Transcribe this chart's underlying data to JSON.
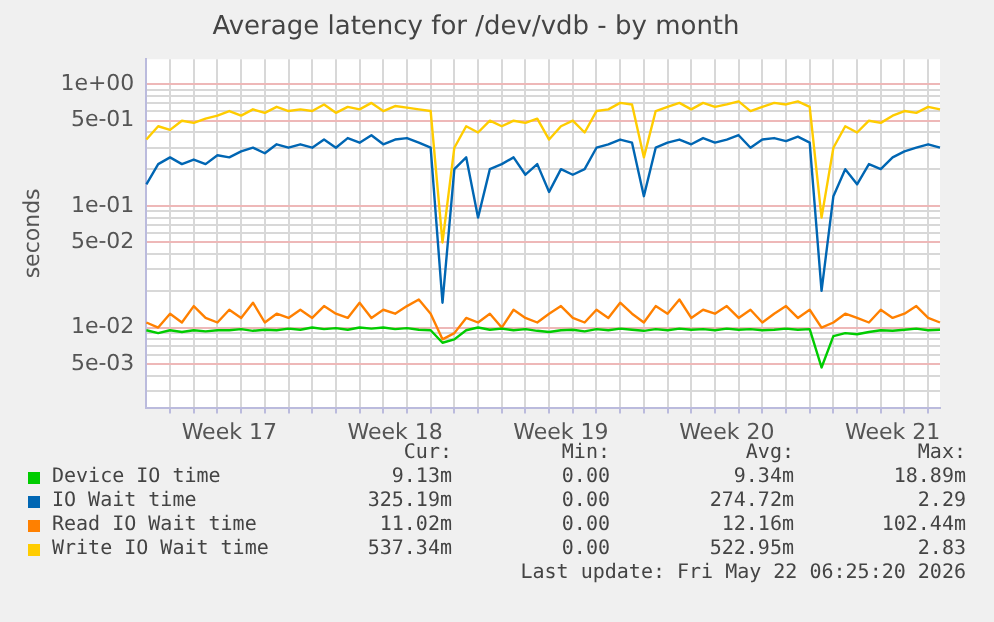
{
  "chart_data": {
    "type": "line",
    "title": "Average latency for /dev/vdb - by month",
    "ylabel": "seconds",
    "categories": [
      null,
      null,
      null,
      null,
      null,
      null,
      null,
      "Week 17",
      null,
      null,
      null,
      null,
      null,
      null,
      null,
      null,
      null,
      null,
      null,
      null,
      null,
      "Week 18",
      null,
      null,
      null,
      null,
      null,
      null,
      null,
      null,
      null,
      null,
      null,
      null,
      null,
      "Week 19",
      null,
      null,
      null,
      null,
      null,
      null,
      null,
      null,
      null,
      null,
      null,
      null,
      null,
      "Week 20",
      null,
      null,
      null,
      null,
      null,
      null,
      null,
      null,
      null,
      null,
      null,
      null,
      null,
      "Week 21",
      null,
      null,
      null,
      null
    ],
    "series": [
      {
        "name": "Device IO time",
        "color": "#00cc00",
        "values": [
          0.0095,
          0.009,
          0.0095,
          0.0092,
          0.0095,
          0.0093,
          0.0095,
          0.0095,
          0.0097,
          0.0094,
          0.0096,
          0.0095,
          0.0098,
          0.0096,
          0.01,
          0.0097,
          0.0099,
          0.0096,
          0.01,
          0.0098,
          0.01,
          0.0097,
          0.0099,
          0.0096,
          0.0095,
          0.0075,
          0.008,
          0.0095,
          0.01,
          0.0096,
          0.0098,
          0.0095,
          0.0097,
          0.0094,
          0.0092,
          0.0095,
          0.0096,
          0.0093,
          0.0097,
          0.0095,
          0.0098,
          0.0096,
          0.0094,
          0.0097,
          0.0095,
          0.0098,
          0.0096,
          0.0097,
          0.0095,
          0.0098,
          0.0096,
          0.0097,
          0.0095,
          0.0096,
          0.0098,
          0.0096,
          0.0097,
          0.0047,
          0.0085,
          0.009,
          0.0088,
          0.0092,
          0.0095,
          0.0094,
          0.0096,
          0.0098,
          0.0095,
          0.0096
        ]
      },
      {
        "name": "IO Wait time",
        "color": "#0066b3",
        "values": [
          0.15,
          0.22,
          0.25,
          0.22,
          0.24,
          0.22,
          0.26,
          0.25,
          0.28,
          0.3,
          0.27,
          0.32,
          0.3,
          0.32,
          0.3,
          0.35,
          0.3,
          0.36,
          0.33,
          0.38,
          0.32,
          0.35,
          0.36,
          0.33,
          0.3,
          0.016,
          0.2,
          0.25,
          0.08,
          0.2,
          0.22,
          0.25,
          0.18,
          0.22,
          0.13,
          0.2,
          0.18,
          0.2,
          0.3,
          0.32,
          0.35,
          0.33,
          0.12,
          0.3,
          0.33,
          0.35,
          0.32,
          0.36,
          0.33,
          0.35,
          0.38,
          0.3,
          0.35,
          0.36,
          0.34,
          0.37,
          0.33,
          0.02,
          0.12,
          0.2,
          0.15,
          0.22,
          0.2,
          0.25,
          0.28,
          0.3,
          0.32,
          0.3
        ]
      },
      {
        "name": "Read IO Wait time",
        "color": "#ff8000",
        "values": [
          0.011,
          0.01,
          0.013,
          0.011,
          0.015,
          0.012,
          0.011,
          0.014,
          0.012,
          0.016,
          0.011,
          0.013,
          0.012,
          0.014,
          0.012,
          0.015,
          0.013,
          0.012,
          0.016,
          0.012,
          0.014,
          0.013,
          0.015,
          0.017,
          0.013,
          0.008,
          0.009,
          0.012,
          0.011,
          0.013,
          0.01,
          0.014,
          0.012,
          0.011,
          0.013,
          0.015,
          0.012,
          0.011,
          0.014,
          0.012,
          0.016,
          0.013,
          0.011,
          0.015,
          0.013,
          0.017,
          0.012,
          0.014,
          0.013,
          0.015,
          0.012,
          0.014,
          0.011,
          0.013,
          0.015,
          0.012,
          0.014,
          0.01,
          0.011,
          0.013,
          0.012,
          0.011,
          0.014,
          0.012,
          0.013,
          0.015,
          0.012,
          0.011
        ]
      },
      {
        "name": "Write IO Wait time",
        "color": "#ffcc00",
        "values": [
          0.35,
          0.45,
          0.42,
          0.5,
          0.48,
          0.52,
          0.55,
          0.6,
          0.55,
          0.62,
          0.58,
          0.65,
          0.6,
          0.62,
          0.6,
          0.68,
          0.58,
          0.65,
          0.62,
          0.7,
          0.6,
          0.66,
          0.64,
          0.62,
          0.6,
          0.05,
          0.3,
          0.45,
          0.4,
          0.5,
          0.45,
          0.5,
          0.48,
          0.52,
          0.35,
          0.45,
          0.5,
          0.4,
          0.6,
          0.62,
          0.7,
          0.68,
          0.25,
          0.6,
          0.65,
          0.7,
          0.62,
          0.7,
          0.65,
          0.68,
          0.72,
          0.6,
          0.65,
          0.7,
          0.68,
          0.72,
          0.65,
          0.08,
          0.3,
          0.45,
          0.4,
          0.5,
          0.48,
          0.55,
          0.6,
          0.58,
          0.65,
          0.62
        ]
      }
    ],
    "ylim": [
      0.0022,
      1.6
    ],
    "yticks": [
      {
        "value": 0.003,
        "label": null
      },
      {
        "value": 0.004,
        "label": null
      },
      {
        "value": 0.005,
        "label": "5e-03"
      },
      {
        "value": 0.006,
        "label": null
      },
      {
        "value": 0.007,
        "label": null
      },
      {
        "value": 0.008,
        "label": null
      },
      {
        "value": 0.009,
        "label": null
      },
      {
        "value": 0.01,
        "label": "1e-02"
      },
      {
        "value": 0.02,
        "label": null
      },
      {
        "value": 0.03,
        "label": null
      },
      {
        "value": 0.04,
        "label": null
      },
      {
        "value": 0.05,
        "label": "5e-02"
      },
      {
        "value": 0.06,
        "label": null
      },
      {
        "value": 0.07,
        "label": null
      },
      {
        "value": 0.08,
        "label": null
      },
      {
        "value": 0.09,
        "label": null
      },
      {
        "value": 0.1,
        "label": "1e-01"
      },
      {
        "value": 0.2,
        "label": null
      },
      {
        "value": 0.3,
        "label": null
      },
      {
        "value": 0.4,
        "label": null
      },
      {
        "value": 0.5,
        "label": "5e-01"
      },
      {
        "value": 0.6,
        "label": null
      },
      {
        "value": 0.7,
        "label": null
      },
      {
        "value": 0.8,
        "label": null
      },
      {
        "value": 0.9,
        "label": null
      },
      {
        "value": 1,
        "label": "1e+00"
      }
    ],
    "log": "y",
    "grid": true,
    "legend": "bottom",
    "marker": "none",
    "line_style": "solid",
    "annotations": [
      "Cur:",
      "Min:",
      "Avg:",
      "Max:",
      "9.13m",
      "0.00",
      "9.34m",
      "18.89m",
      "325.19m",
      "0.00",
      "274.72m",
      "2.29",
      "11.02m",
      "0.00",
      "12.16m",
      "102.44m",
      "537.34m",
      "0.00",
      "522.95m",
      "2.83",
      "Last update: Fri May 22 06:25:20 2026"
    ]
  }
}
